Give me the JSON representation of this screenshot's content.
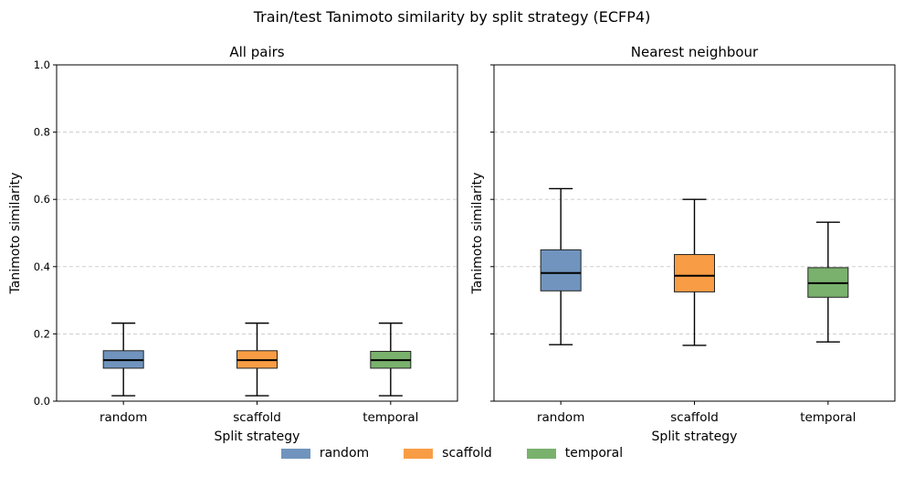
{
  "chart_data": {
    "type": "box",
    "title": "Train/test Tanimoto similarity by split strategy (ECFP4)",
    "categories": [
      "random",
      "scaffold",
      "temporal"
    ],
    "colors": {
      "random": "#7094bd",
      "scaffold": "#f89d45",
      "temporal": "#79b16d"
    },
    "ylim": [
      0,
      1
    ],
    "yticks": [
      "0.0",
      "0.2",
      "0.4",
      "0.6",
      "0.8",
      "1.0"
    ],
    "grid": true,
    "legend_position": "bottom-center",
    "legend": [
      "random",
      "scaffold",
      "temporal"
    ],
    "panels": [
      {
        "title": "All pairs",
        "xlabel": "Split strategy",
        "ylabel": "Tanimoto similarity",
        "show_yticklabels": true,
        "boxes": [
          {
            "category": "random",
            "whislo": 0.016,
            "q1": 0.098,
            "med": 0.122,
            "q3": 0.15,
            "whishi": 0.232
          },
          {
            "category": "scaffold",
            "whislo": 0.016,
            "q1": 0.098,
            "med": 0.122,
            "q3": 0.15,
            "whishi": 0.232
          },
          {
            "category": "temporal",
            "whislo": 0.016,
            "q1": 0.098,
            "med": 0.122,
            "q3": 0.148,
            "whishi": 0.232
          }
        ]
      },
      {
        "title": "Nearest neighbour",
        "xlabel": "Split strategy",
        "ylabel": "Tanimoto similarity",
        "show_yticklabels": false,
        "boxes": [
          {
            "category": "random",
            "whislo": 0.168,
            "q1": 0.328,
            "med": 0.381,
            "q3": 0.45,
            "whishi": 0.632
          },
          {
            "category": "scaffold",
            "whislo": 0.166,
            "q1": 0.325,
            "med": 0.373,
            "q3": 0.436,
            "whishi": 0.6
          },
          {
            "category": "temporal",
            "whislo": 0.176,
            "q1": 0.309,
            "med": 0.351,
            "q3": 0.397,
            "whishi": 0.532
          }
        ]
      }
    ]
  }
}
